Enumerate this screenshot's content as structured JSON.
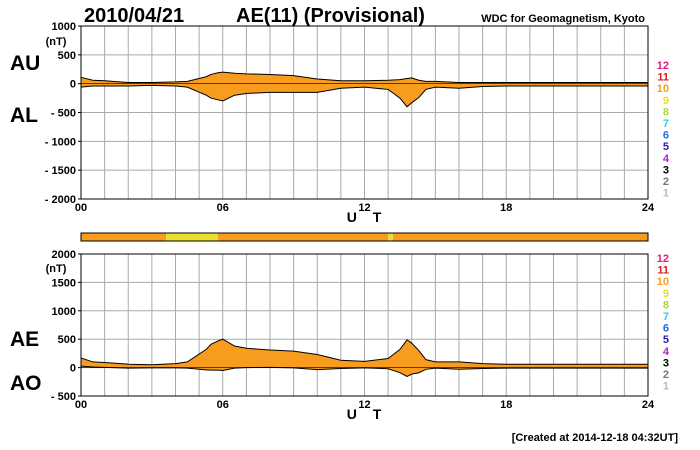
{
  "header": {
    "date": "2010/04/21",
    "title": "AE(11) (Provisional)",
    "org": "WDC for Geomagnetism, Kyoto"
  },
  "footer": {
    "created": "[Created at 2014-12-18 04:32UT]"
  },
  "legend": {
    "items": [
      {
        "label": "12",
        "color": "#e8177d"
      },
      {
        "label": "11",
        "color": "#d81e1e"
      },
      {
        "label": "10",
        "color": "#f79c1f"
      },
      {
        "label": "9",
        "color": "#e8e02a"
      },
      {
        "label": "8",
        "color": "#a7dd2e"
      },
      {
        "label": "7",
        "color": "#2ad0d8"
      },
      {
        "label": "6",
        "color": "#1a6fe0"
      },
      {
        "label": "5",
        "color": "#2a1ab4"
      },
      {
        "label": "4",
        "color": "#b21ecc"
      },
      {
        "label": "3",
        "color": "#000000"
      },
      {
        "label": "2",
        "color": "#777777"
      },
      {
        "label": "1",
        "color": "#bbbbbb"
      }
    ]
  },
  "colors": {
    "fill_main": "#f79c1f",
    "fill_low": "#f0f03a",
    "grid": "#aaaaaa",
    "line": "#000000"
  },
  "chart_data": [
    {
      "type": "area",
      "panel": "AU/AL",
      "side_labels": [
        "AU",
        "AL"
      ],
      "ylabel": "(nT)",
      "ylim": [
        -2000,
        1000
      ],
      "yticks": [
        {
          "v": 1000,
          "label": "1000"
        },
        {
          "v": 500,
          "label": "500"
        },
        {
          "v": 0,
          "label": "0"
        },
        {
          "v": -500,
          "label": "- 500"
        },
        {
          "v": -1000,
          "label": "- 1000"
        },
        {
          "v": -1500,
          "label": "- 1500"
        },
        {
          "v": -2000,
          "label": "- 2000"
        }
      ],
      "xlim": [
        0,
        24
      ],
      "xticks": [
        "00",
        "06",
        "12",
        "18",
        "24"
      ],
      "xlabel": "U T",
      "grid": true,
      "x": [
        0,
        0.5,
        1,
        2,
        3,
        4,
        4.5,
        5.3,
        5.5,
        5.8,
        6,
        6.5,
        7,
        8,
        9,
        10,
        11,
        12,
        13,
        13.5,
        13.8,
        14,
        14.3,
        14.6,
        15,
        16,
        17,
        18,
        19,
        20,
        21,
        22,
        23,
        24
      ],
      "series": [
        {
          "name": "AU",
          "values": [
            110,
            60,
            50,
            20,
            20,
            30,
            40,
            120,
            160,
            190,
            200,
            180,
            170,
            160,
            140,
            80,
            50,
            50,
            60,
            70,
            90,
            100,
            60,
            40,
            40,
            20,
            20,
            20,
            20,
            20,
            20,
            20,
            20,
            20
          ]
        },
        {
          "name": "AL",
          "values": [
            -60,
            -40,
            -40,
            -40,
            -30,
            -40,
            -60,
            -200,
            -250,
            -280,
            -300,
            -200,
            -170,
            -150,
            -150,
            -150,
            -80,
            -60,
            -100,
            -250,
            -400,
            -330,
            -240,
            -100,
            -60,
            -80,
            -50,
            -40,
            -40,
            -40,
            -40,
            -40,
            -40,
            -40
          ]
        }
      ]
    },
    {
      "type": "area",
      "panel": "AE/AO",
      "side_labels": [
        "AE",
        "AO"
      ],
      "ylabel": "(nT)",
      "ylim": [
        -500,
        2000
      ],
      "yticks": [
        {
          "v": 2000,
          "label": "2000"
        },
        {
          "v": 1500,
          "label": "1500"
        },
        {
          "v": 1000,
          "label": "1000"
        },
        {
          "v": 500,
          "label": "500"
        },
        {
          "v": 0,
          "label": "0"
        },
        {
          "v": -500,
          "label": "- 500"
        }
      ],
      "xlim": [
        0,
        24
      ],
      "xticks": [
        "00",
        "06",
        "12",
        "18",
        "24"
      ],
      "xlabel": "U T",
      "grid": true,
      "x": [
        0,
        0.5,
        1,
        2,
        3,
        4,
        4.5,
        5.3,
        5.5,
        5.8,
        6,
        6.5,
        7,
        8,
        9,
        10,
        11,
        12,
        13,
        13.5,
        13.8,
        14,
        14.3,
        14.6,
        15,
        16,
        17,
        18,
        19,
        20,
        21,
        22,
        23,
        24
      ],
      "series": [
        {
          "name": "AE",
          "values": [
            170,
            100,
            90,
            60,
            50,
            70,
            100,
            320,
            410,
            470,
            500,
            380,
            340,
            310,
            290,
            230,
            130,
            110,
            160,
            320,
            490,
            430,
            300,
            140,
            100,
            100,
            70,
            60,
            60,
            60,
            60,
            60,
            60,
            60
          ]
        },
        {
          "name": "AO",
          "values": [
            25,
            10,
            5,
            -10,
            -5,
            -5,
            -10,
            -40,
            -45,
            -45,
            -50,
            -10,
            0,
            5,
            -5,
            -35,
            -15,
            -5,
            -20,
            -90,
            -155,
            -115,
            -90,
            -30,
            -10,
            -30,
            -15,
            -10,
            -10,
            -10,
            -10,
            -10,
            -10,
            -10
          ]
        }
      ],
      "activity_bar": {
        "segments": [
          {
            "from": 0,
            "to": 3.6,
            "level": 10
          },
          {
            "from": 3.6,
            "to": 5.8,
            "level": 9
          },
          {
            "from": 5.8,
            "to": 13.0,
            "level": 10
          },
          {
            "from": 13.0,
            "to": 13.2,
            "level": 9
          },
          {
            "from": 13.2,
            "to": 24,
            "level": 10
          }
        ]
      }
    }
  ]
}
